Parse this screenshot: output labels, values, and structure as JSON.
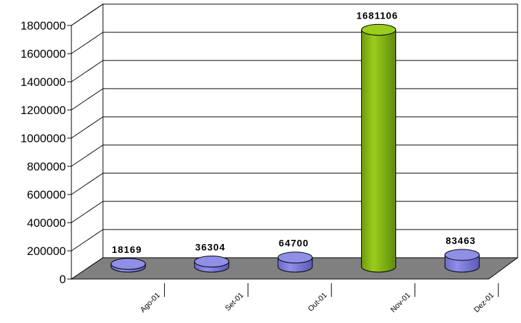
{
  "chart_data": {
    "type": "bar",
    "categories": [
      "Ago-01",
      "Set-01",
      "Out-01",
      "Nov-01",
      "Dez-01"
    ],
    "values": [
      18169,
      36304,
      64700,
      1681106,
      83463
    ],
    "data_labels": [
      "18169",
      "36304",
      "64700",
      "1681106",
      "83463"
    ],
    "title": "",
    "xlabel": "",
    "ylabel": "",
    "ylim": [
      0,
      1800000
    ],
    "yticks": [
      "0",
      "200000",
      "400000",
      "600000",
      "800000",
      "1000000",
      "1200000",
      "1400000",
      "1600000",
      "1800000"
    ],
    "grid": true,
    "legend": "none",
    "colors": {
      "bar_default": "#8f8fe8",
      "bar_highlight": "#9acd1e",
      "floor": "#808080",
      "wall": "#ffffff",
      "grid": "#000000"
    },
    "highlight_index": 3
  }
}
